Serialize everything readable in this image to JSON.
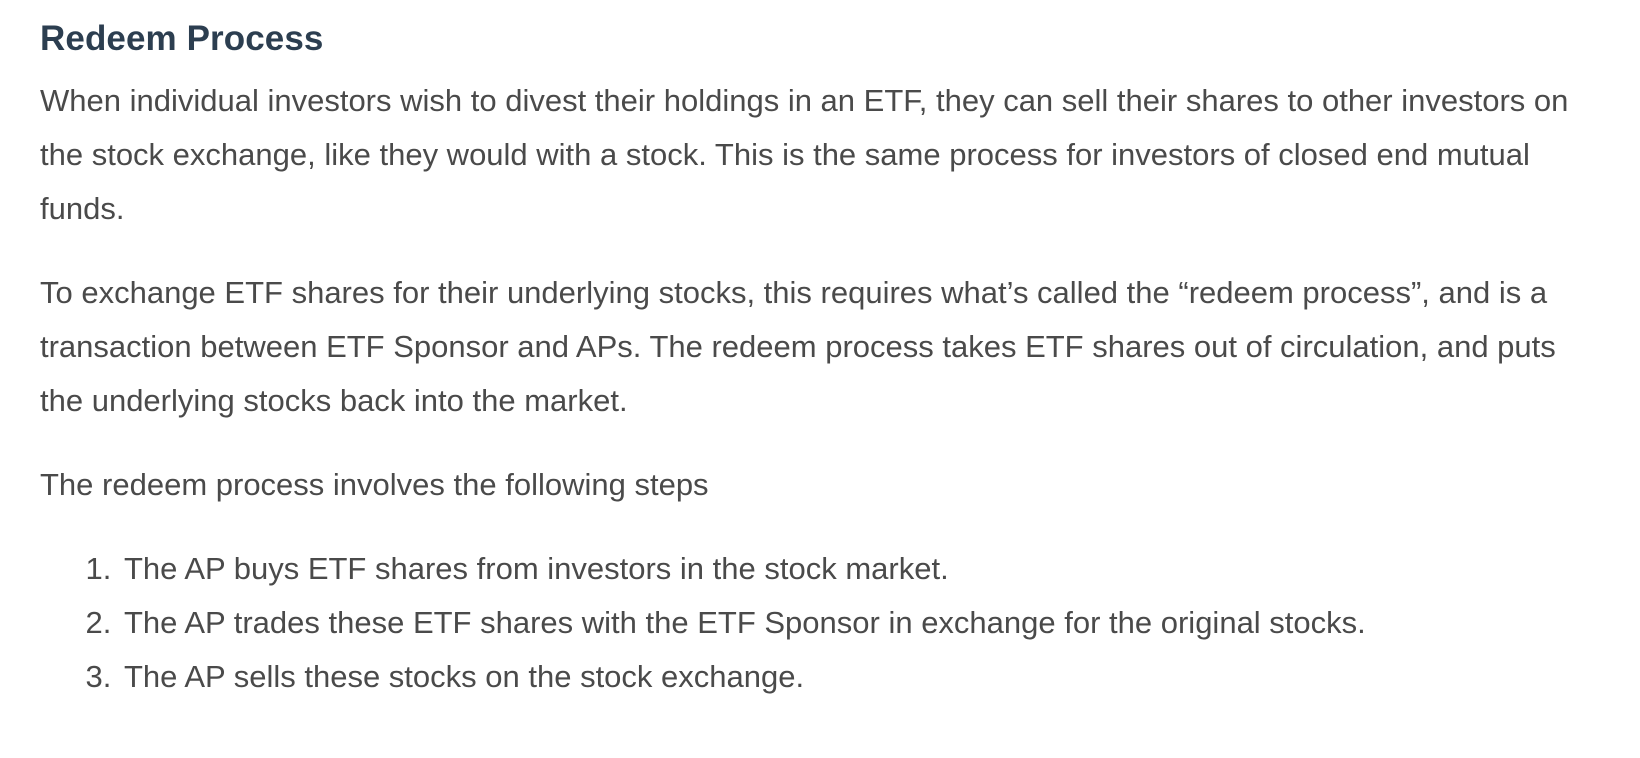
{
  "section": {
    "title": "Redeem Process",
    "paragraphs": [
      "When individual investors wish to divest their holdings in an ETF, they can sell their shares to other investors on the stock exchange, like they would with a stock. This is the same process for investors of closed end mutual funds.",
      "To exchange ETF shares for their underlying stocks, this requires what’s called the “redeem process”, and is a transaction between ETF Sponsor and APs. The redeem process takes ETF shares out of circulation, and puts the underlying stocks back into the market.",
      "The redeem process involves the following steps"
    ],
    "steps": [
      "The AP buys ETF shares from investors in the stock market.",
      "The AP trades these ETF shares with the ETF Sponsor in exchange for the original stocks.",
      "The AP sells these stocks on the stock exchange."
    ]
  }
}
